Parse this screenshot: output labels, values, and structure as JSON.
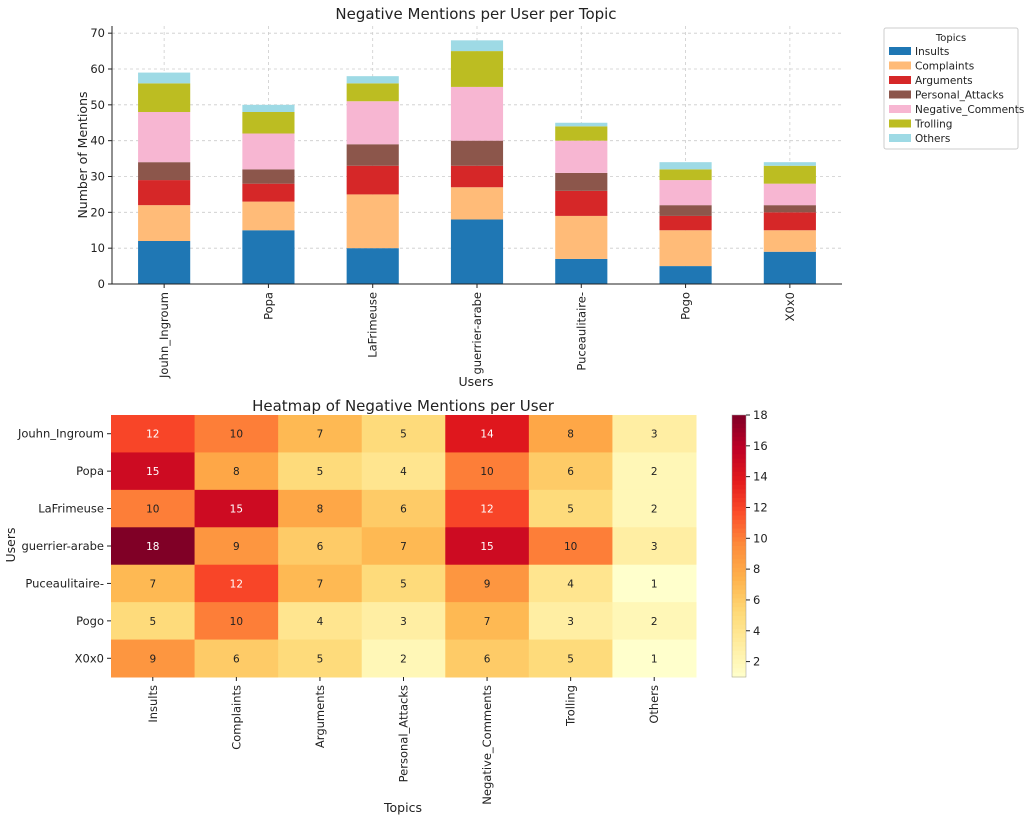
{
  "chart_data": [
    {
      "type": "bar",
      "stacked": true,
      "title": "Negative Mentions per User per Topic",
      "xlabel": "Users",
      "ylabel": "Number of Mentions",
      "ylim": [
        0,
        72
      ],
      "yticks": [
        0,
        10,
        20,
        30,
        40,
        50,
        60,
        70
      ],
      "grid": true,
      "legend_title": "Topics",
      "legend_position": "outside-top-right",
      "categories": [
        "Jouhn_Ingroum",
        "Popa",
        "LaFrimeuse",
        "guerrier-arabe",
        "Puceaulitaire-",
        "Pogo",
        "X0x0"
      ],
      "series": [
        {
          "name": "Insults",
          "color": "#1f77b4",
          "values": [
            12,
            15,
            10,
            18,
            7,
            5,
            9
          ]
        },
        {
          "name": "Complaints",
          "color": "#ffbb78",
          "values": [
            10,
            8,
            15,
            9,
            12,
            10,
            6
          ]
        },
        {
          "name": "Arguments",
          "color": "#d62728",
          "values": [
            7,
            5,
            8,
            6,
            7,
            4,
            5
          ]
        },
        {
          "name": "Personal_Attacks",
          "color": "#8c564b",
          "values": [
            5,
            4,
            6,
            7,
            5,
            3,
            2
          ]
        },
        {
          "name": "Negative_Comments",
          "color": "#f7b6d2",
          "values": [
            14,
            10,
            12,
            15,
            9,
            7,
            6
          ]
        },
        {
          "name": "Trolling",
          "color": "#bcbd22",
          "values": [
            8,
            6,
            5,
            10,
            4,
            3,
            5
          ]
        },
        {
          "name": "Others",
          "color": "#9edae5",
          "values": [
            3,
            2,
            2,
            3,
            1,
            2,
            1
          ]
        }
      ]
    },
    {
      "type": "heatmap",
      "title": "Heatmap of Negative Mentions per User",
      "xlabel": "Topics",
      "ylabel": "Users",
      "colormap": "YlOrRd",
      "vmin": 1,
      "vmax": 18,
      "colorbar_ticks": [
        2,
        4,
        6,
        8,
        10,
        12,
        14,
        16,
        18
      ],
      "rows": [
        "Jouhn_Ingroum",
        "Popa",
        "LaFrimeuse",
        "guerrier-arabe",
        "Puceaulitaire-",
        "Pogo",
        "X0x0"
      ],
      "columns": [
        "Insults",
        "Complaints",
        "Arguments",
        "Personal_Attacks",
        "Negative_Comments",
        "Trolling",
        "Others"
      ],
      "values": [
        [
          12,
          10,
          7,
          5,
          14,
          8,
          3
        ],
        [
          15,
          8,
          5,
          4,
          10,
          6,
          2
        ],
        [
          10,
          15,
          8,
          6,
          12,
          5,
          2
        ],
        [
          18,
          9,
          6,
          7,
          15,
          10,
          3
        ],
        [
          7,
          12,
          7,
          5,
          9,
          4,
          1
        ],
        [
          5,
          10,
          4,
          3,
          7,
          3,
          2
        ],
        [
          9,
          6,
          5,
          2,
          6,
          5,
          1
        ]
      ]
    }
  ]
}
